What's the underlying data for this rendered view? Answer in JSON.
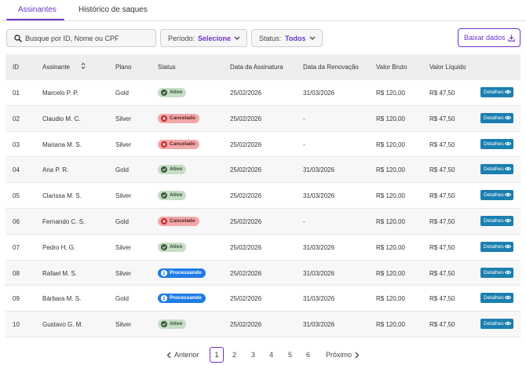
{
  "tabs": [
    {
      "label": "Assinantes",
      "active": true
    },
    {
      "label": "Histórico de saques",
      "active": false
    }
  ],
  "search": {
    "placeholder": "Busque por  ID, Nome ou CPF"
  },
  "filters": {
    "period": {
      "label": "Período:",
      "value": "Selecione"
    },
    "status": {
      "label": "Status:",
      "value": "Todos"
    }
  },
  "download_label": "Baixar dados",
  "table": {
    "headers": {
      "id": "ID",
      "name": "Assinante",
      "plan": "Plano",
      "status": "Status",
      "start": "Data da Assinatura",
      "renew": "Data da Renovação",
      "gross": "Valor Bruto",
      "net": "Valor Líquido"
    },
    "details_label": "Detalhes",
    "rows": [
      {
        "id": "01",
        "name": "Marcelo P. P.",
        "plan": "Gold",
        "status": "Ativo",
        "status_type": "ativo",
        "start": "25/02/2026",
        "renew": "31/03/2026",
        "gross": "R$ 120,00",
        "net": "R$ 47,50"
      },
      {
        "id": "02",
        "name": "Claudio M. C.",
        "plan": "Silver",
        "status": "Cancelado",
        "status_type": "cancelado",
        "start": "25/02/2026",
        "renew": "-",
        "gross": "R$ 120,00",
        "net": "R$ 47,50"
      },
      {
        "id": "03",
        "name": "Mariana M. S.",
        "plan": "Silver",
        "status": "Cancelado",
        "status_type": "cancelado",
        "start": "25/02/2026",
        "renew": "-",
        "gross": "R$ 120,00",
        "net": "R$ 47,50"
      },
      {
        "id": "04",
        "name": "Ana P. R.",
        "plan": "Gold",
        "status": "Ativo",
        "status_type": "ativo",
        "start": "25/02/2026",
        "renew": "31/03/2026",
        "gross": "R$ 120,00",
        "net": "R$ 47,50"
      },
      {
        "id": "05",
        "name": "Clarissa M. S.",
        "plan": "Silver",
        "status": "Ativo",
        "status_type": "ativo",
        "start": "25/02/2026",
        "renew": "31/03/2026",
        "gross": "R$ 120,00",
        "net": "R$ 47,50"
      },
      {
        "id": "06",
        "name": "Fernando C. S.",
        "plan": "Gold",
        "status": "Cancelado",
        "status_type": "cancelado",
        "start": "25/02/2026",
        "renew": "-",
        "gross": "R$ 120,00",
        "net": "R$ 47,50"
      },
      {
        "id": "07",
        "name": "Pedro H. G.",
        "plan": "Silver",
        "status": "Ativo",
        "status_type": "ativo",
        "start": "25/02/2026",
        "renew": "31/03/2026",
        "gross": "R$ 120,00",
        "net": "R$ 47,50"
      },
      {
        "id": "08",
        "name": "Rafael M. S.",
        "plan": "Silver",
        "status": "Processando",
        "status_type": "processando",
        "start": "25/02/2026",
        "renew": "31/03/2026",
        "gross": "R$ 120,00",
        "net": "R$ 47,50"
      },
      {
        "id": "09",
        "name": "Bárbara M. S.",
        "plan": "Gold",
        "status": "Processando",
        "status_type": "processando",
        "start": "25/02/2026",
        "renew": "31/03/2026",
        "gross": "R$ 120,00",
        "net": "R$ 47,50"
      },
      {
        "id": "10",
        "name": "Gustavo G. M.",
        "plan": "Silver",
        "status": "Ativo",
        "status_type": "ativo",
        "start": "25/02/2026",
        "renew": "31/03/2026",
        "gross": "R$ 120,00",
        "net": "R$ 47,50"
      }
    ]
  },
  "pagination": {
    "prev": "Anterior",
    "next": "Próximo",
    "current": "1",
    "pages": [
      "2",
      "3",
      "4",
      "5",
      "6"
    ]
  },
  "colors": {
    "accent": "#6b35c9",
    "details_button": "#1b7fb0",
    "processing": "#1f7ce6"
  },
  "icons": {
    "search": "search-icon",
    "dropdown": "chevron-down-icon",
    "download": "download-icon",
    "details": "eye-icon",
    "sort": "sort-icon"
  }
}
